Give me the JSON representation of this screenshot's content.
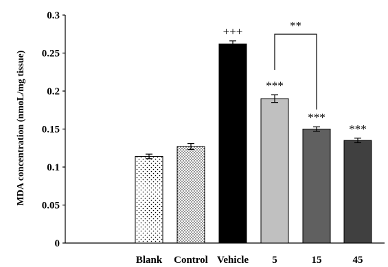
{
  "chart_data": {
    "type": "bar",
    "title": "",
    "xlabel": "",
    "ylabel": "MDA concentration (nmoL/mg tissue)",
    "ylim": [
      0,
      0.3
    ],
    "yticks": [
      "0",
      "0.05",
      "0.1",
      "0.15",
      "0.2",
      "0.25",
      "0.3"
    ],
    "ytick_values": [
      0,
      0.05,
      0.1,
      0.15,
      0.2,
      0.25,
      0.3
    ],
    "grid": false,
    "categories": [
      "Blank",
      "Control",
      "Vehicle",
      "5",
      "15",
      "45"
    ],
    "values": [
      0.114,
      0.127,
      0.262,
      0.19,
      0.15,
      0.135
    ],
    "errors": [
      0.003,
      0.004,
      0.004,
      0.005,
      0.003,
      0.003
    ],
    "fills": [
      "sparse-dots",
      "dense-dots",
      "#000000",
      "#c0c0c0",
      "#606060",
      "#404040"
    ],
    "annotations": [
      "",
      "",
      "+++",
      "***",
      "***",
      "***"
    ],
    "bracket": {
      "from": "5",
      "to": "15",
      "label": "**"
    }
  }
}
